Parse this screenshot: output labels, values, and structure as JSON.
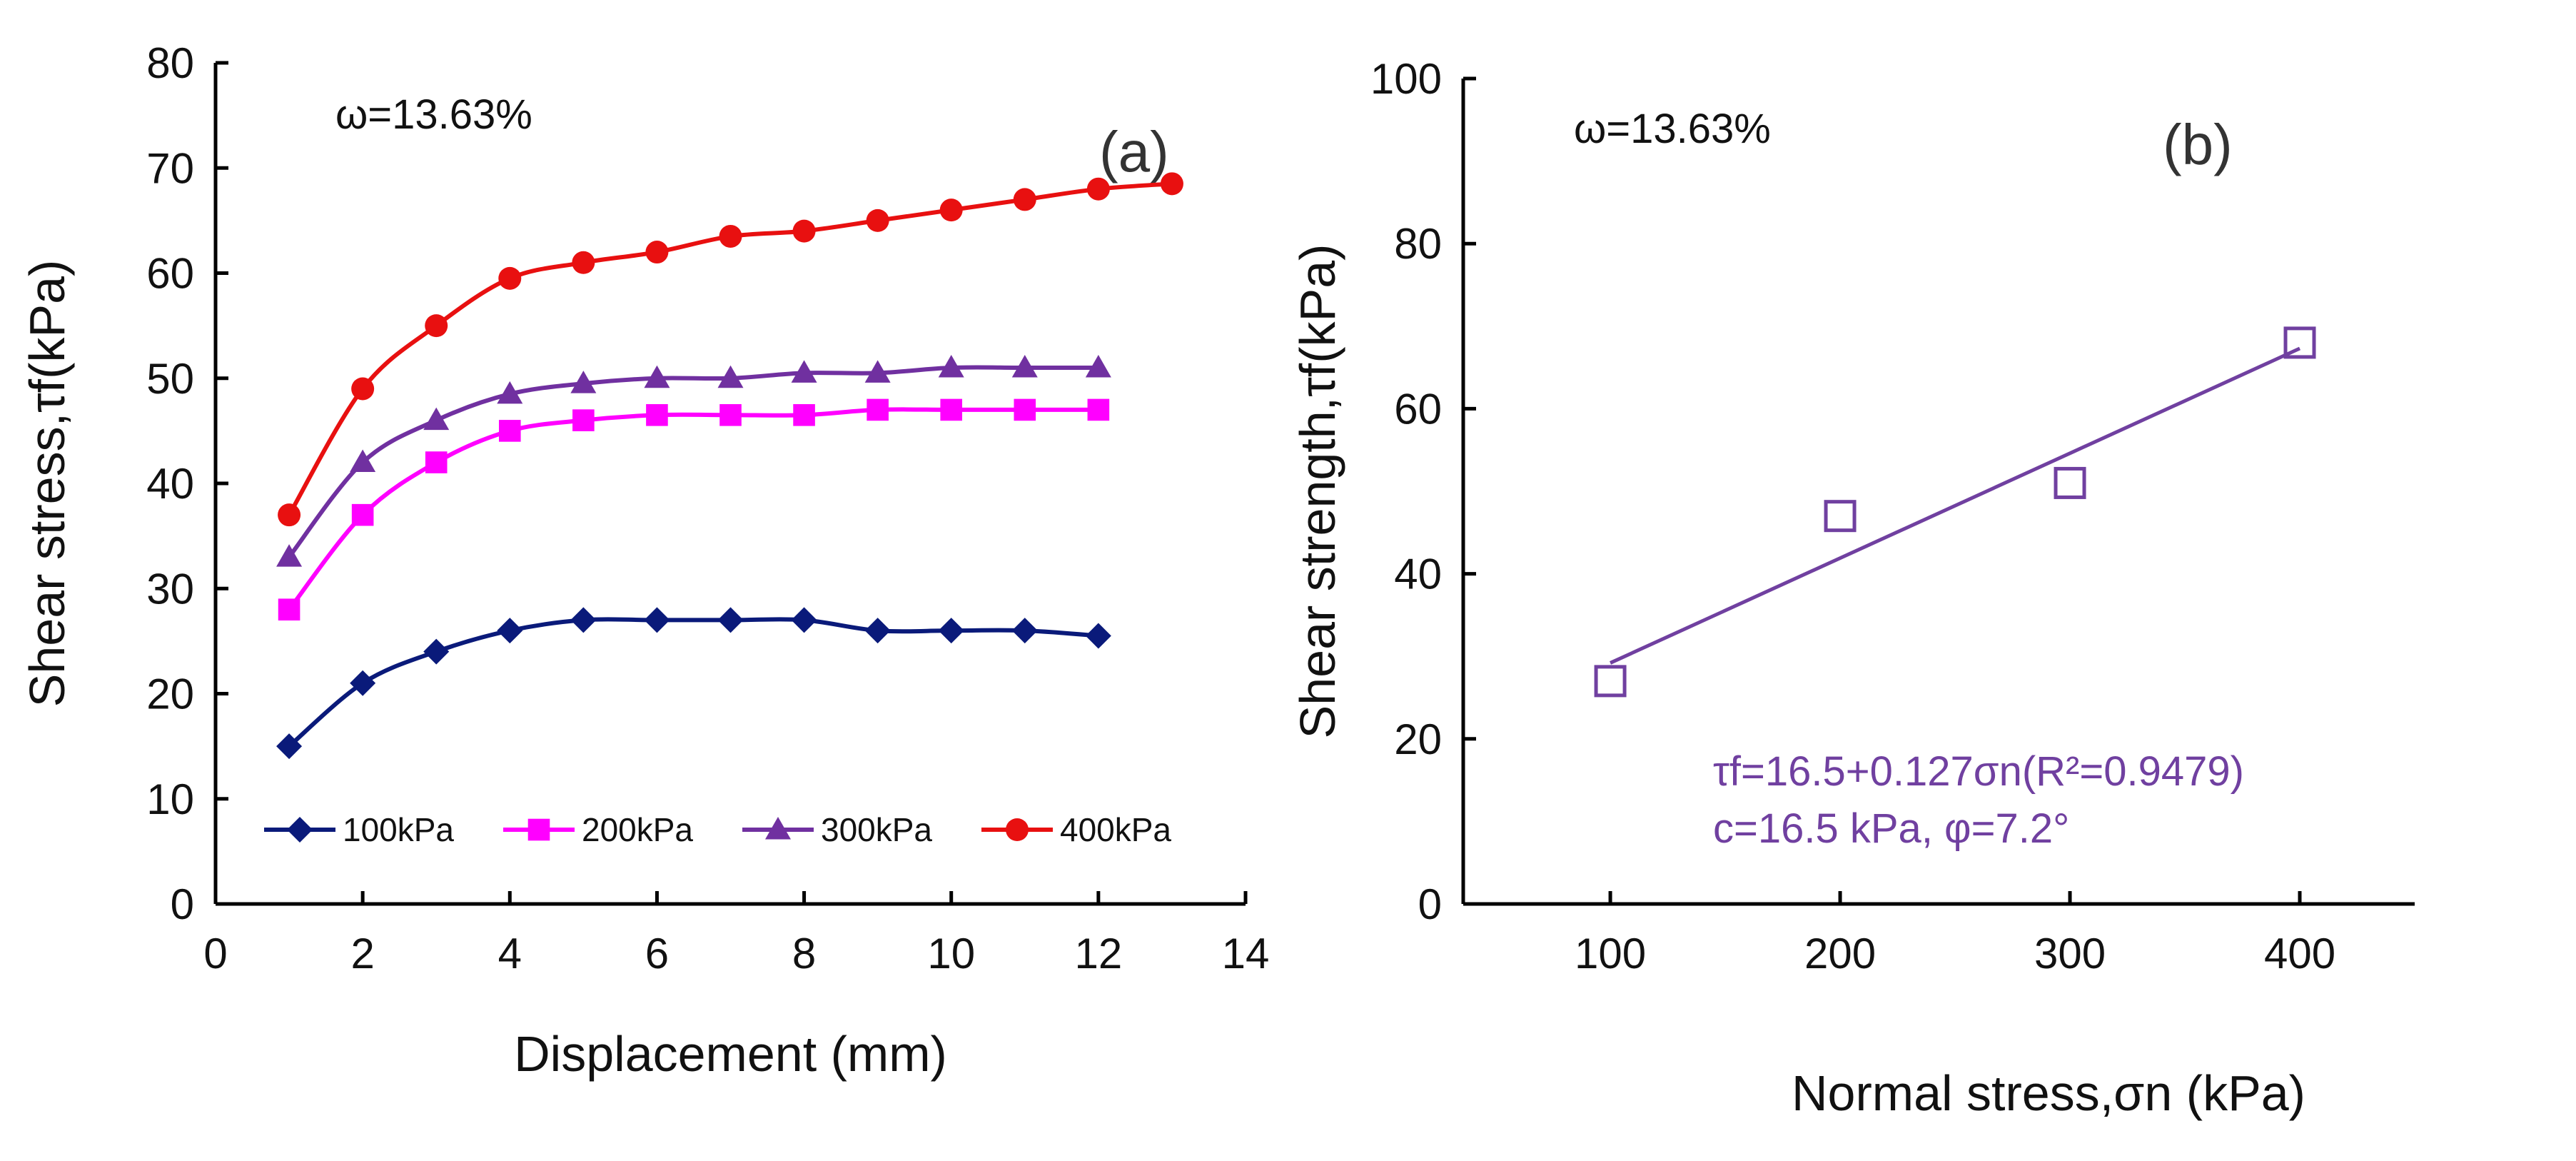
{
  "chart_data": [
    {
      "type": "line",
      "panel": "(a)",
      "annotation": "ω=13.63%",
      "xlabel": "Displacement (mm)",
      "ylabel": "Shear stress,τf(kPa)",
      "xlim": [
        0,
        14
      ],
      "ylim": [
        0,
        80
      ],
      "xticks": [
        0,
        2,
        4,
        6,
        8,
        10,
        12,
        14
      ],
      "yticks": [
        0,
        10,
        20,
        30,
        40,
        50,
        60,
        70,
        80
      ],
      "legend_position": "bottom",
      "series": [
        {
          "name": "100kPa",
          "color": "#0a1a7a",
          "marker": "diamond",
          "x": [
            1,
            2,
            3,
            4,
            5,
            6,
            7,
            8,
            9,
            10,
            11,
            12
          ],
          "values": [
            15,
            21,
            24,
            26,
            27,
            27,
            27,
            27,
            26,
            26,
            26,
            25.5
          ]
        },
        {
          "name": "200kPa",
          "color": "#ff00ff",
          "marker": "square",
          "x": [
            1,
            2,
            3,
            4,
            5,
            6,
            7,
            8,
            9,
            10,
            11,
            12
          ],
          "values": [
            28,
            37,
            42,
            45,
            46,
            46.5,
            46.5,
            46.5,
            47,
            47,
            47,
            47
          ]
        },
        {
          "name": "300kPa",
          "color": "#7030a0",
          "marker": "triangle",
          "x": [
            1,
            2,
            3,
            4,
            5,
            6,
            7,
            8,
            9,
            10,
            11,
            12
          ],
          "values": [
            33,
            42,
            46,
            48.5,
            49.5,
            50,
            50,
            50.5,
            50.5,
            51,
            51,
            51
          ]
        },
        {
          "name": "400kPa",
          "color": "#e81010",
          "marker": "circle",
          "x": [
            1,
            2,
            3,
            4,
            5,
            6,
            7,
            8,
            9,
            10,
            11,
            12,
            13
          ],
          "values": [
            37,
            49,
            55,
            59.5,
            61,
            62,
            63.5,
            64,
            65,
            66,
            67,
            68,
            68.5
          ]
        }
      ]
    },
    {
      "type": "scatter",
      "panel": "(b)",
      "annotation": "ω=13.63%",
      "xlabel": "Normal stress,σn (kPa)",
      "ylabel": "Shear strength,τf(kPa)",
      "xlim": [
        36,
        450
      ],
      "ylim": [
        0,
        100
      ],
      "xticks": [
        100,
        200,
        300,
        400
      ],
      "yticks": [
        0,
        20,
        40,
        60,
        80,
        100
      ],
      "color": "#7040a0",
      "x": [
        100,
        200,
        300,
        400
      ],
      "values": [
        27,
        47,
        51,
        68
      ],
      "fit": {
        "intercept": 16.5,
        "slope": 0.127,
        "x_range": [
          100,
          400
        ]
      },
      "equation": "τf=16.5+0.127σn(R²=0.9479)",
      "params": "c=16.5 kPa, φ=7.2°"
    }
  ]
}
